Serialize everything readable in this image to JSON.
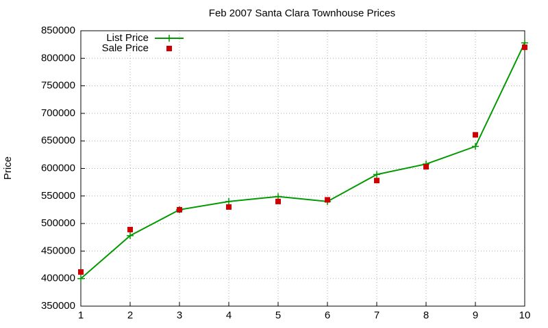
{
  "chart_data": {
    "type": "line",
    "title": "Feb 2007 Santa Clara Townhouse Prices",
    "y_label": "Price",
    "x": [
      1,
      2,
      3,
      4,
      5,
      6,
      7,
      8,
      9,
      10
    ],
    "series": [
      {
        "name": "List Price",
        "color": "#009900",
        "mode": "lines+markers",
        "values": [
          400000,
          478000,
          525000,
          540000,
          549000,
          540000,
          589000,
          608000,
          640000,
          828000
        ]
      },
      {
        "name": "Sale Price",
        "color": "#cc0000",
        "mode": "markers",
        "values": [
          412000,
          489000,
          525000,
          530000,
          540000,
          543000,
          578000,
          603000,
          661000,
          820000
        ]
      }
    ],
    "xlim": [
      1,
      10
    ],
    "xticks": [
      1,
      2,
      3,
      4,
      5,
      6,
      7,
      8,
      9,
      10
    ],
    "ylim": [
      350000,
      850000
    ],
    "yticks": [
      350000,
      400000,
      450000,
      500000,
      550000,
      600000,
      650000,
      700000,
      750000,
      800000,
      850000
    ],
    "grid": true,
    "legend": "top-left"
  }
}
